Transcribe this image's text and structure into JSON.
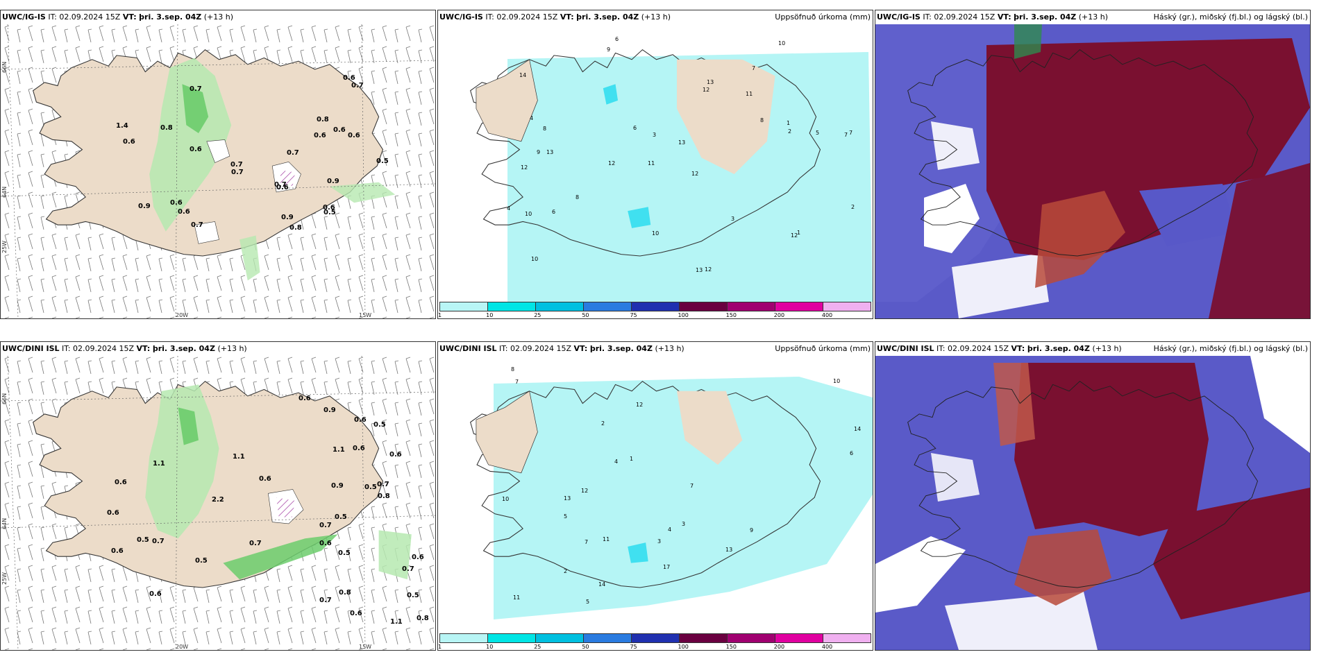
{
  "panels": [
    {
      "id": "r1c1",
      "source": "UWC/IG-IS",
      "it": "IT: 02.09.2024 15Z",
      "vt_label": "VT:",
      "vt": "þri. 3.sep. 04Z",
      "offset": "(+13 h)",
      "right_title": ""
    },
    {
      "id": "r1c2",
      "source": "UWC/IG-IS",
      "it": "IT: 02.09.2024 15Z",
      "vt_label": "VT:",
      "vt": "þri. 3.sep. 04Z",
      "offset": "(+13 h)",
      "right_title": "Uppsöfnuð úrkoma (mm)"
    },
    {
      "id": "r1c3",
      "source": "UWC/IG-IS",
      "it": "IT: 02.09.2024 15Z",
      "vt_label": "VT:",
      "vt": "þri. 3.sep. 04Z",
      "offset": "(+13 h)",
      "right_title": "Háský (gr.), miðský (fj.bl.) og lágský (bl.)"
    },
    {
      "id": "r2c1",
      "source": "UWC/DINI ISL",
      "it": "IT: 02.09.2024 15Z",
      "vt_label": "VT:",
      "vt": "þri. 3.sep. 04Z",
      "offset": "(+13 h)",
      "right_title": ""
    },
    {
      "id": "r2c2",
      "source": "UWC/DINI ISL",
      "it": "IT: 02.09.2024 15Z",
      "vt_label": "VT:",
      "vt": "þri. 3.sep. 04Z",
      "offset": "(+13 h)",
      "right_title": "Uppsöfnuð úrkoma (mm)"
    },
    {
      "id": "r2c3",
      "source": "UWC/DINI ISL",
      "it": "IT: 02.09.2024 15Z",
      "vt_label": "VT:",
      "vt": "þri. 3.sep. 04Z",
      "offset": "(+13 h)",
      "right_title": "Háský (gr.), miðský (fj.bl.) og lágský (bl.)"
    }
  ],
  "axis_labels": {
    "lon_20w": "20W",
    "lon_15w": "15W",
    "lat_66n": "66N",
    "lat_64n": "64N",
    "lat_25w": "25W"
  },
  "colorbar": {
    "ticks": [
      "1",
      "10",
      "25",
      "50",
      "75",
      "100",
      "150",
      "200",
      "400"
    ],
    "colors": [
      "#b8f5f5",
      "#00e5e5",
      "#00c0e0",
      "#2a7be0",
      "#2030b0",
      "#6a0040",
      "#a00070",
      "#e000a0",
      "#f0b0f0"
    ]
  },
  "precip_values_r1": [
    "0.8",
    "0.7",
    "0.6",
    "0.8",
    "0.6",
    "0.9",
    "0.5",
    "0.6",
    "0.7",
    "0.6",
    "0.9",
    "1.4",
    "0.7",
    "0.7",
    "0.6",
    "0.6",
    "0.6",
    "0.7",
    "0.9",
    "0.6",
    "0.6",
    "0.6",
    "0.7",
    "0.5",
    "0.7",
    "0.8"
  ],
  "precip_values_r2": [
    "0.6",
    "0.6",
    "0.5",
    "0.7",
    "0.7",
    "0.6",
    "0.7",
    "0.6",
    "0.5",
    "0.6",
    "0.5",
    "0.7",
    "0.6",
    "0.5",
    "0.5",
    "1.1",
    "0.5",
    "0.5",
    "0.6",
    "1.1",
    "0.7",
    "0.6",
    "0.9",
    "0.9",
    "0.8",
    "0.6",
    "1.1",
    "1.1",
    "0.8",
    "0.7",
    "0.6",
    "0.6",
    "0.6",
    "0.8",
    "2.2"
  ],
  "accum_values_r1": [
    "6",
    "7",
    "7",
    "11",
    "12",
    "13",
    "14",
    "11",
    "12",
    "12",
    "13",
    "10",
    "9",
    "12",
    "13",
    "12",
    "10",
    "10",
    "8",
    "8",
    "8",
    "9",
    "7",
    "5",
    "4",
    "4",
    "3",
    "2",
    "1",
    "10",
    "12",
    "13",
    "6",
    "6",
    "3",
    "2",
    "1"
  ],
  "accum_values_r2": [
    "7",
    "8",
    "10",
    "10",
    "14",
    "13",
    "12",
    "11",
    "11",
    "9",
    "7",
    "7",
    "5",
    "5",
    "4",
    "4",
    "3",
    "2",
    "2",
    "1",
    "6",
    "17",
    "14",
    "12",
    "13",
    "3"
  ],
  "colors": {
    "land": "#ecdcc9",
    "coast": "#333333",
    "precip_light": "#b6e9b0",
    "precip_mid": "#6ccc6c",
    "precip_dark": "#1f8a3a",
    "ice_hatch": "#9b2e9b",
    "cyan_light": "#b5f5f5",
    "cyan_mid": "#40e0f0",
    "cloud_high": "#7a1030",
    "cloud_mid": "#b84a3a",
    "cloud_low": "#5858c8"
  }
}
